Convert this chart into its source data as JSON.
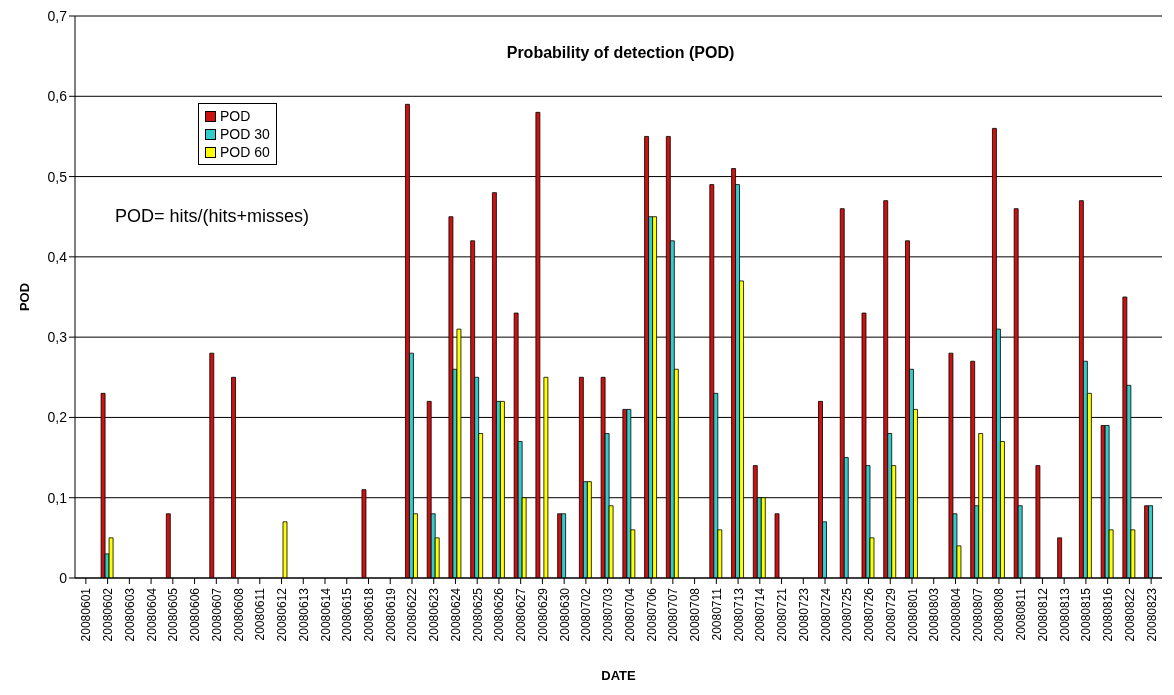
{
  "chart_data": {
    "type": "bar",
    "title": "Probability of detection (POD)",
    "xlabel": "DATE",
    "ylabel": "POD",
    "annotations": [
      "POD= hits/(hits+misses)"
    ],
    "categories": [
      "20080601",
      "20080602",
      "20080603",
      "20080604",
      "20080605",
      "20080606",
      "20080607",
      "20080608",
      "20080611",
      "20080612",
      "20080613",
      "20080614",
      "20080615",
      "20080618",
      "20080619",
      "20080622",
      "20080623",
      "20080624",
      "20080625",
      "20080626",
      "20080627",
      "20080629",
      "20080630",
      "20080702",
      "20080703",
      "20080704",
      "20080706",
      "20080707",
      "20080708",
      "20080711",
      "20080713",
      "20080714",
      "20080721",
      "20080723",
      "20080724",
      "20080725",
      "20080726",
      "20080729",
      "20080801",
      "20080803",
      "20080804",
      "20080807",
      "20080808",
      "20080811",
      "20080812",
      "20080813",
      "20080815",
      "20080816",
      "20080822",
      "20080823"
    ],
    "series": [
      {
        "name": "POD",
        "color": "#cc1111",
        "values": [
          null,
          0.23,
          null,
          null,
          0.08,
          null,
          0.28,
          0.25,
          null,
          null,
          null,
          null,
          null,
          0.11,
          null,
          0.59,
          0.22,
          0.45,
          0.42,
          0.48,
          0.33,
          0.58,
          0.08,
          0.25,
          0.25,
          0.21,
          0.55,
          0.55,
          null,
          0.49,
          0.51,
          0.14,
          0.08,
          null,
          0.22,
          0.46,
          0.33,
          0.47,
          0.42,
          null,
          0.28,
          0.27,
          0.56,
          0.46,
          0.14,
          0.05,
          0.47,
          0.19,
          0.35,
          0.09
        ]
      },
      {
        "name": "POD 30",
        "color": "#33cccc",
        "values": [
          null,
          0.03,
          null,
          null,
          null,
          null,
          null,
          null,
          null,
          null,
          null,
          null,
          null,
          null,
          null,
          0.28,
          0.08,
          0.26,
          0.25,
          0.22,
          0.17,
          null,
          0.08,
          0.12,
          0.18,
          0.21,
          0.45,
          0.42,
          null,
          0.23,
          0.49,
          0.1,
          null,
          null,
          0.07,
          0.15,
          0.14,
          0.18,
          0.26,
          null,
          0.08,
          0.09,
          0.31,
          0.09,
          null,
          null,
          0.27,
          0.19,
          0.24,
          0.09
        ]
      },
      {
        "name": "POD 60",
        "color": "#ffff00",
        "values": [
          null,
          0.05,
          null,
          null,
          null,
          null,
          null,
          null,
          null,
          0.07,
          null,
          null,
          null,
          null,
          null,
          0.08,
          0.05,
          0.31,
          0.18,
          0.22,
          0.1,
          0.25,
          null,
          0.12,
          0.09,
          0.06,
          0.45,
          0.26,
          null,
          0.06,
          0.37,
          0.1,
          null,
          null,
          null,
          null,
          0.05,
          0.14,
          0.21,
          null,
          0.04,
          0.18,
          0.17,
          null,
          null,
          null,
          0.23,
          0.06,
          0.06,
          null
        ]
      }
    ],
    "ylim": [
      0,
      0.7
    ],
    "yticks": [
      0,
      {
        "value": 0.1,
        "label": "0,1"
      },
      {
        "value": 0.2,
        "label": "0,2"
      },
      {
        "value": 0.3,
        "label": "0,3"
      },
      {
        "value": 0.4,
        "label": "0,4"
      },
      {
        "value": 0.5,
        "label": "0,5"
      },
      {
        "value": 0.6,
        "label": "0,6"
      },
      {
        "value": 0.7,
        "label": "0,7"
      }
    ],
    "grid": "y",
    "legend": "top left"
  }
}
